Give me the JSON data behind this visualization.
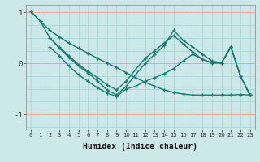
{
  "background_color": "#cce8e8",
  "grid_color_major": "#f0a0a0",
  "grid_color_minor": "#a8d8d8",
  "line_color": "#1a7a6e",
  "xlabel": "Humidex (Indice chaleur)",
  "x_ticks": [
    0,
    1,
    2,
    3,
    4,
    5,
    6,
    7,
    8,
    9,
    10,
    11,
    12,
    13,
    14,
    15,
    16,
    17,
    18,
    19,
    20,
    21,
    22,
    23
  ],
  "ylim": [
    -1.3,
    1.15
  ],
  "yticks": [
    -1,
    0,
    1
  ],
  "series1_x": [
    0,
    1,
    2,
    3,
    4,
    5,
    6,
    7,
    8,
    9,
    10,
    11,
    12,
    13,
    14,
    15,
    16,
    17,
    18,
    19,
    20,
    21,
    22,
    23
  ],
  "series1_y": [
    1.02,
    0.83,
    0.65,
    0.52,
    0.4,
    0.3,
    0.2,
    0.1,
    0.01,
    -0.08,
    -0.18,
    -0.28,
    -0.37,
    -0.45,
    -0.52,
    -0.57,
    -0.6,
    -0.62,
    -0.62,
    -0.62,
    -0.62,
    -0.62,
    -0.61,
    -0.62
  ],
  "series2_x": [
    0,
    1,
    2,
    3,
    4,
    5,
    6,
    7,
    8,
    9,
    10,
    11,
    12,
    13,
    14,
    15,
    16,
    17,
    18,
    19,
    20,
    21,
    22,
    23
  ],
  "series2_y": [
    1.02,
    0.83,
    0.5,
    0.32,
    0.15,
    -0.02,
    -0.15,
    -0.28,
    -0.42,
    -0.52,
    -0.35,
    -0.12,
    0.1,
    0.25,
    0.4,
    0.55,
    0.38,
    0.22,
    0.08,
    0.01,
    0.01,
    0.32,
    -0.25,
    -0.62
  ],
  "series3_x": [
    2,
    3,
    4,
    5,
    6,
    7,
    8,
    9,
    10,
    11,
    12,
    13,
    14,
    15,
    16,
    17,
    18,
    19,
    20,
    21,
    22,
    23
  ],
  "series3_y": [
    0.5,
    0.3,
    0.12,
    -0.05,
    -0.18,
    -0.35,
    -0.52,
    -0.62,
    -0.45,
    -0.22,
    0.0,
    0.18,
    0.35,
    0.65,
    0.45,
    0.32,
    0.18,
    0.05,
    0.01,
    0.32,
    -0.25,
    -0.62
  ],
  "series4_x": [
    2,
    3,
    4,
    5,
    6,
    7,
    8,
    9,
    10,
    11,
    12,
    13,
    14,
    15,
    16,
    17,
    18,
    19,
    20,
    21,
    22,
    23
  ],
  "series4_y": [
    0.32,
    0.15,
    -0.05,
    -0.22,
    -0.35,
    -0.48,
    -0.58,
    -0.65,
    -0.5,
    -0.45,
    -0.35,
    -0.28,
    -0.2,
    -0.1,
    0.05,
    0.18,
    0.08,
    0.01,
    0.01,
    0.32,
    -0.25,
    -0.62
  ]
}
